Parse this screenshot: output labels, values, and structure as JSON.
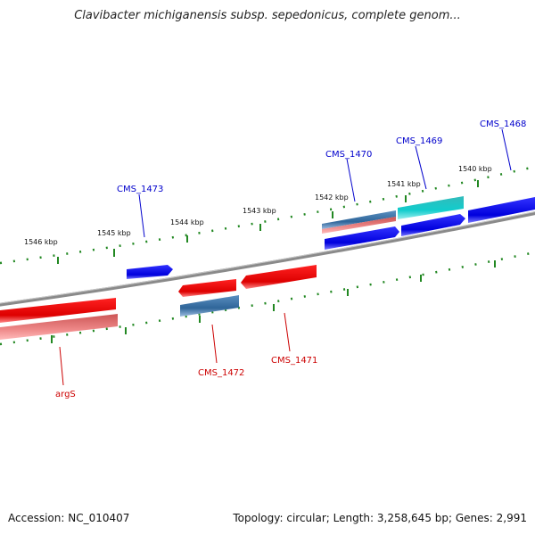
{
  "title": "Clavibacter michiganensis subsp. sepedonicus, complete genom...",
  "footer": {
    "accession": "Accession: NC_010407",
    "summary": "Topology: circular; Length: 3,258,645 bp; Genes: 2,991"
  },
  "kbp_labels": [
    "1546 kbp",
    "1545 kbp",
    "1544 kbp",
    "1543 kbp",
    "1542 kbp",
    "1541 kbp",
    "1540 kbp"
  ],
  "genes": [
    {
      "label": "CMS_1468",
      "strand": "forward",
      "color": "#0000cc"
    },
    {
      "label": "CMS_1469",
      "strand": "forward",
      "color": "#0000cc"
    },
    {
      "label": "CMS_1470",
      "strand": "forward",
      "color": "#0000cc"
    },
    {
      "label": "CMS_1473",
      "strand": "forward",
      "color": "#0000cc"
    },
    {
      "label": "CMS_1472",
      "strand": "reverse",
      "color": "#dd0000"
    },
    {
      "label": "CMS_1471",
      "strand": "reverse",
      "color": "#dd0000"
    },
    {
      "label": "argS",
      "strand": "reverse",
      "color": "#dd0000"
    }
  ],
  "colors": {
    "forward": "#0000ee",
    "reverse": "#ee0000",
    "steelblue": "#4682b4",
    "cyan": "#22cccc",
    "pink": "#ee8888",
    "tick": "#228822",
    "backbone": "#808080"
  }
}
